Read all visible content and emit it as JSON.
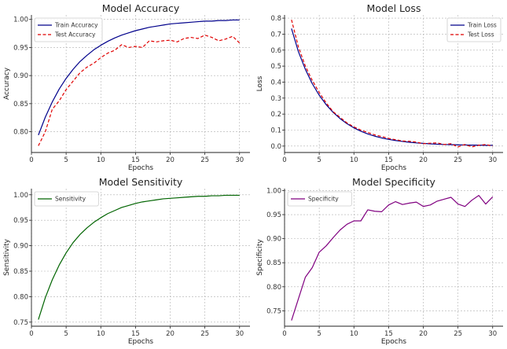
{
  "chart_data": [
    {
      "type": "line",
      "title": "Model Accuracy",
      "xlabel": "Epochs",
      "ylabel": "Accuracy",
      "x": [
        1,
        2,
        3,
        4,
        5,
        6,
        7,
        8,
        9,
        10,
        11,
        12,
        13,
        14,
        15,
        16,
        17,
        18,
        19,
        20,
        21,
        22,
        23,
        24,
        25,
        26,
        27,
        28,
        29,
        30
      ],
      "xlim": [
        0,
        31.5
      ],
      "ylim": [
        0.763,
        1.008
      ],
      "xticks": [
        0,
        5,
        10,
        15,
        20,
        25,
        30
      ],
      "yticks": [
        0.8,
        0.85,
        0.9,
        0.95,
        1.0
      ],
      "ytick_labels": [
        "0.80",
        "0.85",
        "0.90",
        "0.95",
        "1.00"
      ],
      "grid": true,
      "legend": "top-left",
      "series": [
        {
          "name": "Train Accuracy",
          "color": "#00008b",
          "dash": "solid",
          "values": [
            0.794,
            0.826,
            0.853,
            0.876,
            0.895,
            0.911,
            0.925,
            0.936,
            0.946,
            0.954,
            0.961,
            0.967,
            0.972,
            0.976,
            0.98,
            0.983,
            0.986,
            0.988,
            0.99,
            0.992,
            0.993,
            0.994,
            0.995,
            0.996,
            0.997,
            0.997,
            0.998,
            0.998,
            0.999,
            0.999
          ]
        },
        {
          "name": "Test Accuracy",
          "color": "#e00000",
          "dash": "dashed",
          "values": [
            0.775,
            0.8,
            0.84,
            0.855,
            0.875,
            0.89,
            0.905,
            0.915,
            0.922,
            0.932,
            0.94,
            0.945,
            0.955,
            0.95,
            0.952,
            0.95,
            0.962,
            0.96,
            0.962,
            0.963,
            0.96,
            0.966,
            0.968,
            0.966,
            0.972,
            0.968,
            0.962,
            0.965,
            0.97,
            0.958
          ]
        }
      ]
    },
    {
      "type": "line",
      "title": "Model Loss",
      "xlabel": "Epochs",
      "ylabel": "Loss",
      "x": [
        1,
        2,
        3,
        4,
        5,
        6,
        7,
        8,
        9,
        10,
        11,
        12,
        13,
        14,
        15,
        16,
        17,
        18,
        19,
        20,
        21,
        22,
        23,
        24,
        25,
        26,
        27,
        28,
        29,
        30
      ],
      "xlim": [
        0,
        31.5
      ],
      "ylim": [
        -0.04,
        0.82
      ],
      "xticks": [
        0,
        5,
        10,
        15,
        20,
        25,
        30
      ],
      "yticks": [
        0.0,
        0.1,
        0.2,
        0.3,
        0.4,
        0.5,
        0.6,
        0.7,
        0.8
      ],
      "ytick_labels": [
        "0.0",
        "0.1",
        "0.2",
        "0.3",
        "0.4",
        "0.5",
        "0.6",
        "0.7",
        "0.8"
      ],
      "grid": true,
      "legend": "top-right",
      "series": [
        {
          "name": "Train Loss",
          "color": "#00008b",
          "dash": "solid",
          "values": [
            0.735,
            0.59,
            0.48,
            0.39,
            0.318,
            0.259,
            0.211,
            0.172,
            0.14,
            0.114,
            0.093,
            0.076,
            0.062,
            0.051,
            0.042,
            0.035,
            0.029,
            0.024,
            0.02,
            0.017,
            0.014,
            0.012,
            0.01,
            0.009,
            0.008,
            0.007,
            0.006,
            0.006,
            0.005,
            0.005
          ]
        },
        {
          "name": "Test Loss",
          "color": "#e00000",
          "dash": "dashed",
          "values": [
            0.79,
            0.62,
            0.5,
            0.41,
            0.335,
            0.27,
            0.215,
            0.18,
            0.145,
            0.12,
            0.1,
            0.085,
            0.07,
            0.06,
            0.048,
            0.04,
            0.032,
            0.03,
            0.025,
            0.015,
            0.018,
            0.02,
            0.01,
            0.015,
            -0.005,
            0.01,
            -0.005,
            0.005,
            0.01,
            0.0
          ]
        }
      ]
    },
    {
      "type": "line",
      "title": "Model Sensitivity",
      "xlabel": "Epochs",
      "ylabel": "Sensitivity",
      "x": [
        1,
        2,
        3,
        4,
        5,
        6,
        7,
        8,
        9,
        10,
        11,
        12,
        13,
        14,
        15,
        16,
        17,
        18,
        19,
        20,
        21,
        22,
        23,
        24,
        25,
        26,
        27,
        28,
        29,
        30
      ],
      "xlim": [
        0,
        31.5
      ],
      "ylim": [
        0.742,
        1.012
      ],
      "xticks": [
        0,
        5,
        10,
        15,
        20,
        25,
        30
      ],
      "yticks": [
        0.75,
        0.8,
        0.85,
        0.9,
        0.95,
        1.0
      ],
      "ytick_labels": [
        "0.75",
        "0.80",
        "0.85",
        "0.90",
        "0.95",
        "1.00"
      ],
      "grid": true,
      "legend": "top-left",
      "series": [
        {
          "name": "Sensitivity",
          "color": "#006400",
          "dash": "solid",
          "values": [
            0.755,
            0.798,
            0.833,
            0.862,
            0.886,
            0.906,
            0.922,
            0.935,
            0.946,
            0.955,
            0.963,
            0.969,
            0.975,
            0.979,
            0.983,
            0.986,
            0.988,
            0.99,
            0.992,
            0.993,
            0.994,
            0.995,
            0.996,
            0.997,
            0.997,
            0.998,
            0.998,
            0.999,
            0.999,
            0.999
          ]
        }
      ]
    },
    {
      "type": "line",
      "title": "Model Specificity",
      "xlabel": "Epochs",
      "ylabel": "Specificity",
      "x": [
        1,
        2,
        3,
        4,
        5,
        6,
        7,
        8,
        9,
        10,
        11,
        12,
        13,
        14,
        15,
        16,
        17,
        18,
        19,
        20,
        21,
        22,
        23,
        24,
        25,
        26,
        27,
        28,
        29,
        30
      ],
      "xlim": [
        0,
        31.5
      ],
      "ylim": [
        0.718,
        1.004
      ],
      "xticks": [
        0,
        5,
        10,
        15,
        20,
        25,
        30
      ],
      "yticks": [
        0.75,
        0.8,
        0.85,
        0.9,
        0.95,
        1.0
      ],
      "ytick_labels": [
        "0.75",
        "0.80",
        "0.85",
        "0.90",
        "0.95",
        "1.00"
      ],
      "grid": true,
      "legend": "top-left",
      "series": [
        {
          "name": "Specificity",
          "color": "#800080",
          "dash": "solid",
          "values": [
            0.73,
            0.775,
            0.82,
            0.84,
            0.872,
            0.885,
            0.902,
            0.918,
            0.93,
            0.937,
            0.937,
            0.96,
            0.957,
            0.956,
            0.97,
            0.977,
            0.971,
            0.974,
            0.976,
            0.967,
            0.97,
            0.978,
            0.982,
            0.986,
            0.972,
            0.967,
            0.98,
            0.99,
            0.972,
            0.987
          ]
        }
      ]
    }
  ]
}
